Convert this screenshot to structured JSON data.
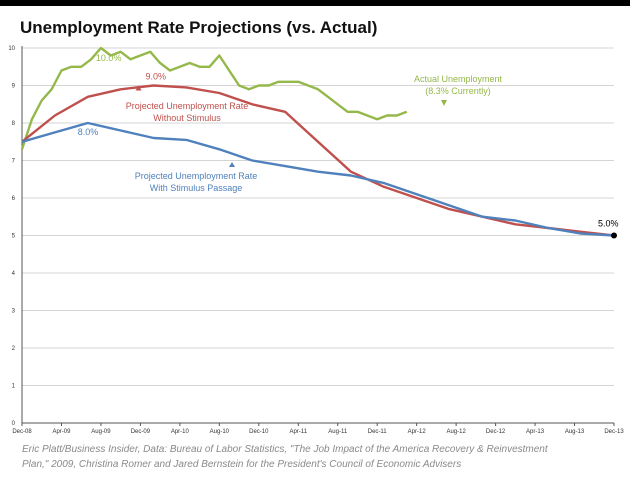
{
  "chart_data": {
    "type": "line",
    "title": "Unemployment Rate Projections (vs. Actual)",
    "xlabel": "",
    "ylabel": "",
    "ylim": [
      0,
      10
    ],
    "yticks": [
      0,
      1,
      2,
      3,
      4,
      5,
      6,
      7,
      8,
      9,
      10
    ],
    "x_tick_labels": [
      "Dec-08",
      "Apr-09",
      "Aug-09",
      "Dec-09",
      "Apr-10",
      "Aug-10",
      "Dec-10",
      "Apr-11",
      "Aug-11",
      "Dec-11",
      "Apr-12",
      "Aug-12",
      "Dec-12",
      "Apr-13",
      "Aug-13",
      "Dec-13"
    ],
    "grid": true,
    "series": [
      {
        "name": "Actual Unemployment",
        "color": "#94b84a",
        "points": [
          [
            0,
            7.3
          ],
          [
            1,
            8.1
          ],
          [
            2,
            8.6
          ],
          [
            3,
            8.9
          ],
          [
            4,
            9.4
          ],
          [
            5,
            9.5
          ],
          [
            6,
            9.5
          ],
          [
            7,
            9.7
          ],
          [
            8,
            10.0
          ],
          [
            9,
            9.8
          ],
          [
            10,
            9.9
          ],
          [
            11,
            9.7
          ],
          [
            12,
            9.8
          ],
          [
            13,
            9.9
          ],
          [
            14,
            9.6
          ],
          [
            15,
            9.4
          ],
          [
            16,
            9.5
          ],
          [
            17,
            9.6
          ],
          [
            18,
            9.5
          ],
          [
            19,
            9.5
          ],
          [
            20,
            9.8
          ],
          [
            21,
            9.4
          ],
          [
            22,
            9.0
          ],
          [
            23,
            8.9
          ],
          [
            24,
            9.0
          ],
          [
            25,
            9.0
          ],
          [
            26,
            9.1
          ],
          [
            27,
            9.1
          ],
          [
            28,
            9.1
          ],
          [
            29,
            9.0
          ],
          [
            30,
            8.9
          ],
          [
            31,
            8.7
          ],
          [
            32,
            8.5
          ],
          [
            33,
            8.3
          ],
          [
            34,
            8.3
          ],
          [
            35,
            8.2
          ],
          [
            36,
            8.1
          ],
          [
            37,
            8.2
          ],
          [
            38,
            8.2
          ],
          [
            39,
            8.3
          ]
        ]
      },
      {
        "name": "Projected Unemployment Rate Without Stimulus",
        "color": "#c0504d",
        "points": [
          [
            0,
            7.5
          ],
          [
            4,
            8.2
          ],
          [
            8,
            8.7
          ],
          [
            12,
            8.9
          ],
          [
            16,
            9.0
          ],
          [
            20,
            8.95
          ],
          [
            24,
            8.8
          ],
          [
            28,
            8.5
          ],
          [
            32,
            8.3
          ],
          [
            36,
            7.5
          ],
          [
            40,
            6.7
          ],
          [
            44,
            6.3
          ],
          [
            48,
            6.0
          ],
          [
            52,
            5.7
          ],
          [
            56,
            5.5
          ],
          [
            60,
            5.3
          ],
          [
            64,
            5.2
          ],
          [
            68,
            5.1
          ],
          [
            72,
            5.0
          ]
        ]
      },
      {
        "name": "Projected Unemployment Rate With Stimulus Passage",
        "color": "#4f81bd",
        "points": [
          [
            0,
            7.5
          ],
          [
            4,
            7.75
          ],
          [
            8,
            8.0
          ],
          [
            12,
            7.8
          ],
          [
            16,
            7.6
          ],
          [
            20,
            7.55
          ],
          [
            24,
            7.3
          ],
          [
            28,
            7.0
          ],
          [
            32,
            6.85
          ],
          [
            36,
            6.7
          ],
          [
            40,
            6.6
          ],
          [
            44,
            6.4
          ],
          [
            48,
            6.1
          ],
          [
            52,
            5.8
          ],
          [
            56,
            5.5
          ],
          [
            60,
            5.4
          ],
          [
            64,
            5.2
          ],
          [
            68,
            5.05
          ],
          [
            72,
            5.0
          ]
        ]
      }
    ],
    "annotations": [
      {
        "text": "10.0%",
        "x": 8,
        "y": 10.0,
        "color": "#94b84a"
      },
      {
        "text": "9.0%",
        "x": 16,
        "y": 9.0,
        "color": "#c0504d"
      },
      {
        "text": "8.0%",
        "x": 8,
        "y": 8.0,
        "color": "#4f81bd"
      },
      {
        "text": "5.0%",
        "x": 72,
        "y": 5.0,
        "color": "#000000"
      }
    ],
    "labels": {
      "actual_line1": "Actual Unemployment",
      "actual_line2": "(8.3% Currently)",
      "without_line1": "Projected Unemployment Rate",
      "without_line2": "Without Stimulus",
      "with_line1": "Projected Unemployment Rate",
      "with_line2": "With Stimulus Passage"
    }
  },
  "source_line1": "Eric Platt/Business Insider, Data: Bureau of Labor Statistics, \"The Job Impact of the America Recovery & Reinvestment",
  "source_line2": "Plan,\" 2009, Christina Romer and Jared Bernstein for the President's Council of Economic Advisers"
}
